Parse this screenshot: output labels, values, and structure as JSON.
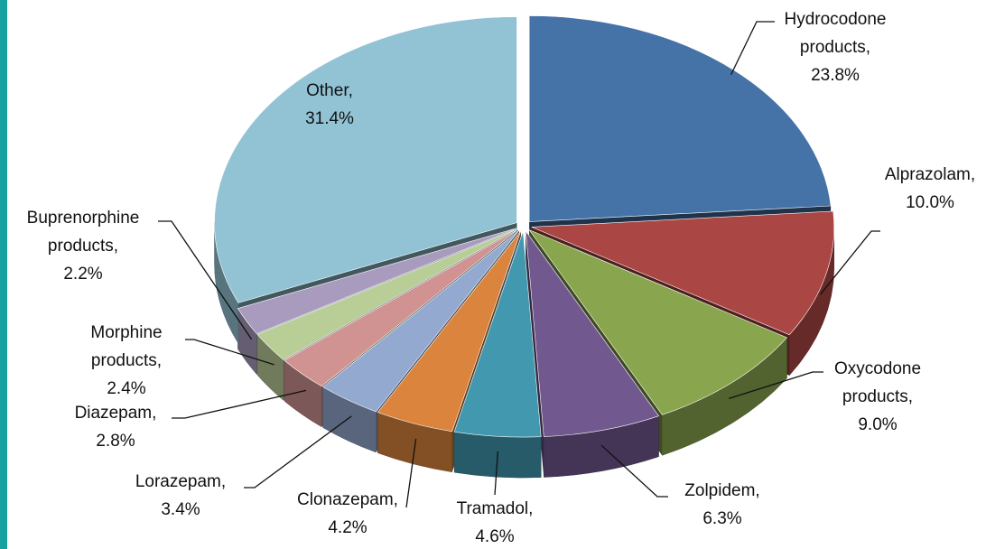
{
  "chart_data": {
    "type": "pie",
    "categories": [
      "Hydrocodone products,",
      "Alprazolam,",
      "Oxycodone products,",
      "Zolpidem,",
      "Tramadol,",
      "Clonazepam,",
      "Lorazepam,",
      "Diazepam,",
      "Morphine products,",
      "Buprenorphine products,",
      "Other,"
    ],
    "values": [
      23.8,
      10.0,
      9.0,
      6.3,
      4.6,
      4.2,
      3.4,
      2.8,
      2.4,
      2.2,
      31.4
    ],
    "value_labels": [
      "23.8%",
      "10.0%",
      "9.0%",
      "6.3%",
      "4.6%",
      "4.2%",
      "3.4%",
      "2.8%",
      "2.4%",
      "2.2%",
      "31.4%"
    ],
    "colors": [
      "#4572a7",
      "#aa4643",
      "#89a54e",
      "#71588f",
      "#4198af",
      "#db843d",
      "#93a9cf",
      "#d19392",
      "#b9cd96",
      "#a99bbd",
      "#92c3d4"
    ]
  }
}
